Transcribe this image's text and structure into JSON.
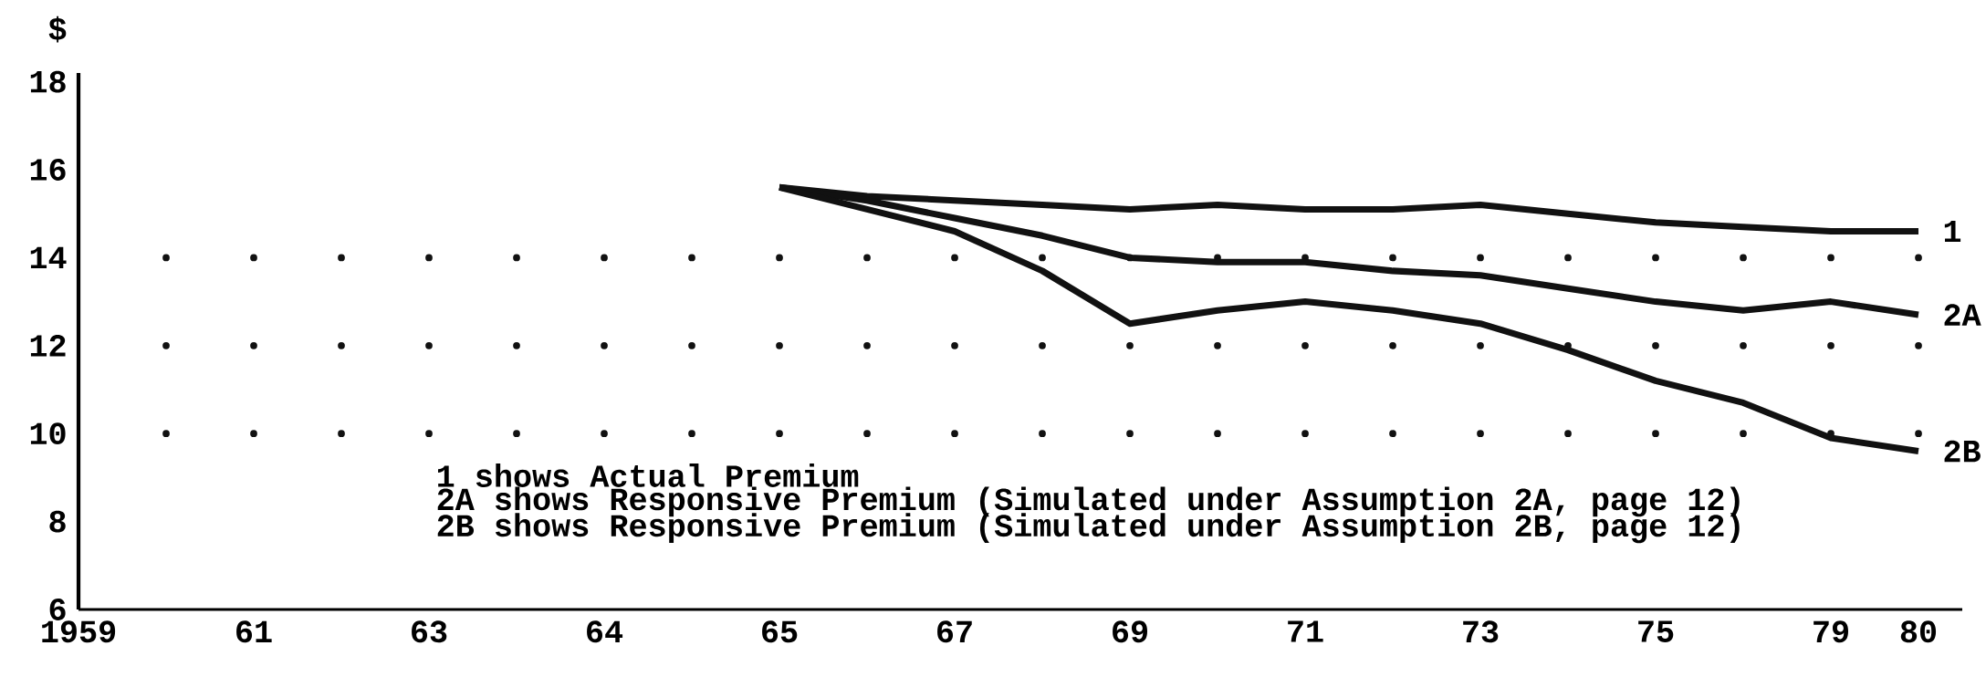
{
  "chart_data": {
    "type": "line",
    "ylabel": "$",
    "categories": [
      "1959",
      null,
      "61",
      null,
      "63",
      null,
      "64",
      null,
      "65",
      null,
      "67",
      null,
      "69",
      null,
      "71",
      null,
      "73",
      null,
      "75",
      null,
      "79",
      "80"
    ],
    "series": [
      {
        "name": "1",
        "color": "#111111",
        "values": [
          null,
          null,
          null,
          null,
          null,
          null,
          null,
          null,
          15.6,
          15.4,
          15.3,
          15.2,
          15.1,
          15.2,
          15.1,
          15.1,
          15.2,
          15.0,
          14.8,
          14.7,
          14.6,
          14.6
        ]
      },
      {
        "name": "2A",
        "color": "#111111",
        "values": [
          null,
          null,
          null,
          null,
          null,
          null,
          null,
          null,
          15.6,
          15.3,
          14.9,
          14.5,
          14.0,
          13.9,
          13.9,
          13.7,
          13.6,
          13.3,
          13.0,
          12.8,
          13.0,
          12.7
        ]
      },
      {
        "name": "2B",
        "color": "#111111",
        "values": [
          null,
          null,
          null,
          null,
          null,
          null,
          null,
          null,
          15.6,
          15.1,
          14.6,
          13.7,
          12.5,
          12.8,
          13.0,
          12.8,
          12.5,
          11.9,
          11.2,
          10.7,
          9.9,
          9.6
        ]
      }
    ],
    "ylim": [
      6,
      18.2
    ],
    "yticks": [
      6,
      8,
      10,
      12,
      14,
      16,
      18
    ],
    "ref_lines": [
      {
        "axis": "y",
        "value": 10,
        "line_style": "dotted"
      },
      {
        "axis": "y",
        "value": 12,
        "line_style": "dotted"
      },
      {
        "axis": "y",
        "value": 14,
        "line_style": "dotted"
      }
    ],
    "annotations": [
      "1 shows Actual Premium",
      "2A shows Responsive Premium (Simulated under Assumption 2A, page 12)",
      "2B shows Responsive Premium (Simulated under Assumption 2B, page 12)"
    ],
    "marker": "none",
    "line_style": "solid"
  }
}
